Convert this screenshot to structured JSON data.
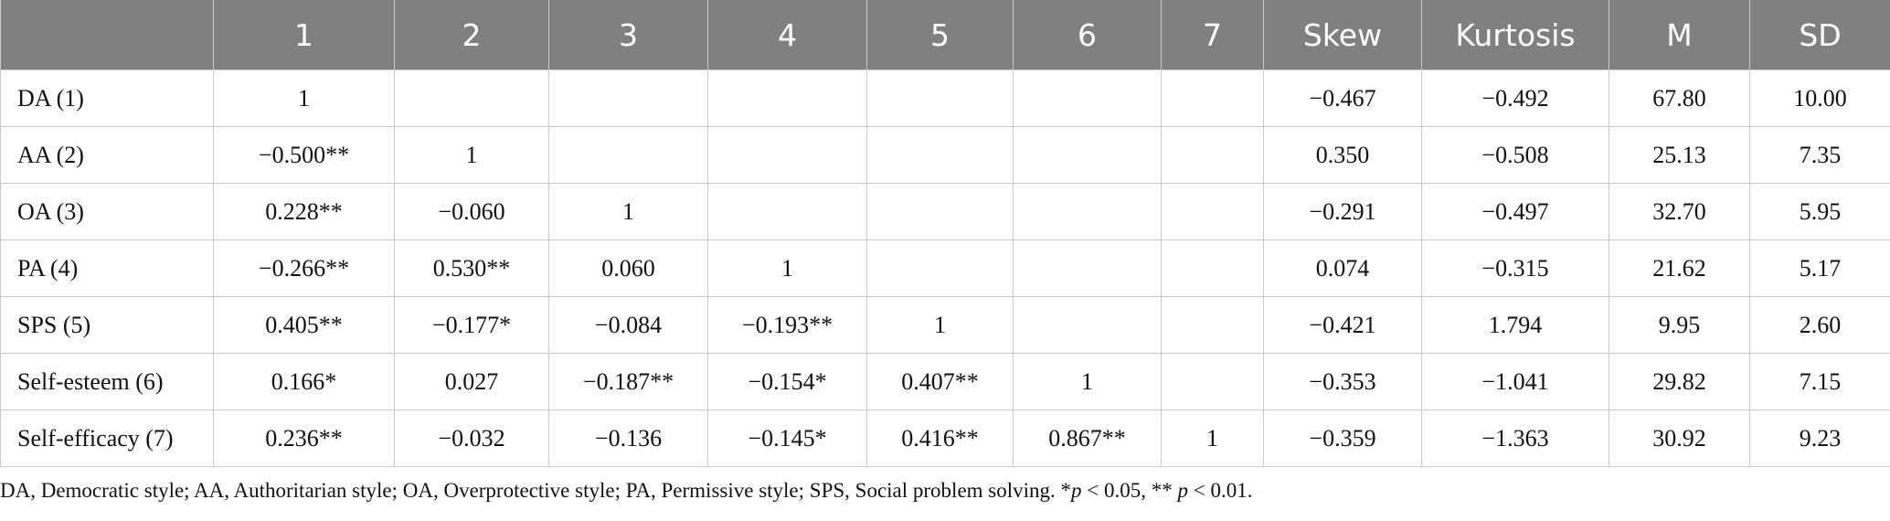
{
  "table": {
    "header": [
      null,
      "1",
      "2",
      "3",
      "4",
      "5",
      "6",
      "7",
      "Skew",
      "Kurtosis",
      "M",
      "SD"
    ],
    "rows": [
      [
        "DA (1)",
        "1",
        null,
        null,
        null,
        null,
        null,
        null,
        "−0.467",
        "−0.492",
        "67.80",
        "10.00"
      ],
      [
        "AA (2)",
        "−0.500**",
        "1",
        null,
        null,
        null,
        null,
        null,
        "0.350",
        "−0.508",
        "25.13",
        "7.35"
      ],
      [
        "OA (3)",
        "0.228**",
        "−0.060",
        "1",
        null,
        null,
        null,
        null,
        "−0.291",
        "−0.497",
        "32.70",
        "5.95"
      ],
      [
        "PA (4)",
        "−0.266**",
        "0.530**",
        "0.060",
        "1",
        null,
        null,
        null,
        "0.074",
        "−0.315",
        "21.62",
        "5.17"
      ],
      [
        "SPS (5)",
        "0.405**",
        "−0.177*",
        "−0.084",
        "−0.193**",
        "1",
        null,
        null,
        "−0.421",
        "1.794",
        "9.95",
        "2.60"
      ],
      [
        "Self-esteem (6)",
        "0.166*",
        "0.027",
        "−0.187**",
        "−0.154*",
        "0.407**",
        "1",
        null,
        "−0.353",
        "−1.041",
        "29.82",
        "7.15"
      ],
      [
        "Self-efficacy (7)",
        "0.236**",
        "−0.032",
        "−0.136",
        "−0.145*",
        "0.416**",
        "0.867**",
        "1",
        "−0.359",
        "−1.363",
        "30.92",
        "9.23"
      ]
    ]
  },
  "footnote": [
    "DA, Democratic style; AA, Authoritarian style; OA, Overprotective style; PA, Permissive style; SPS, Social problem solving. *",
    "p",
    " < 0.05, ** ",
    "p",
    " < 0.01."
  ]
}
